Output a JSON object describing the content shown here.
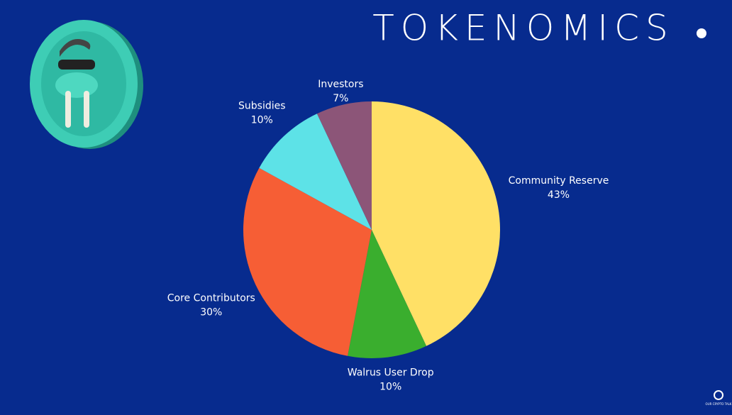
{
  "chart_data": {
    "type": "pie",
    "title": "TOKENOMICS",
    "categories": [
      "Community Reserve",
      "Walrus User Drop",
      "Core Contributors",
      "Subsidies",
      "Investors"
    ],
    "values": [
      43,
      10,
      30,
      10,
      7
    ],
    "value_labels": [
      "43%",
      "10%",
      "30%",
      "10%",
      "7%"
    ],
    "colors": [
      "#FFE066",
      "#3AAE2E",
      "#F65E35",
      "#5DE2E7",
      "#8C5578"
    ]
  },
  "logo": "OUR CRYPTO TALK"
}
